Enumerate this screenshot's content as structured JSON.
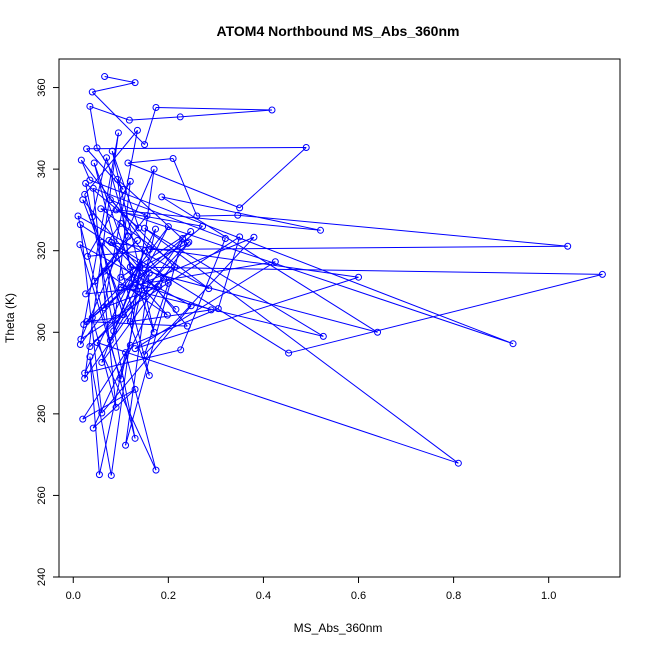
{
  "chart_data": {
    "type": "line",
    "title": "ATOM4 Northbound MS_Abs_360nm",
    "xlabel": "MS_Abs_360nm",
    "ylabel": "Theta (K)",
    "xlim": [
      -0.03,
      1.15
    ],
    "ylim": [
      240,
      367
    ],
    "xticks": [
      "0.0",
      "0.2",
      "0.4",
      "0.6",
      "0.8",
      "1.0"
    ],
    "xtick_values": [
      0,
      0.2,
      0.4,
      0.6,
      0.8,
      1.0
    ],
    "yticks": [
      "240",
      "260",
      "280",
      "300",
      "320",
      "340",
      "360"
    ],
    "ytick_values": [
      240,
      260,
      280,
      300,
      320,
      340,
      360
    ],
    "grid": false,
    "legend": "none",
    "series": [
      {
        "color": "#0000ff",
        "marker": "open-circle",
        "points": [
          [
            0.066,
            362.7
          ],
          [
            0.13,
            361.2
          ],
          [
            0.04,
            358.9
          ],
          [
            0.15,
            346.0
          ],
          [
            0.174,
            355.1
          ],
          [
            0.418,
            354.5
          ],
          [
            0.225,
            352.8
          ],
          [
            0.118,
            352.0
          ],
          [
            0.035,
            355.4
          ],
          [
            0.05,
            345.2
          ],
          [
            0.105,
            335.0
          ],
          [
            0.028,
            345.0
          ],
          [
            0.49,
            345.3
          ],
          [
            0.35,
            330.5
          ],
          [
            0.115,
            341.5
          ],
          [
            0.21,
            342.6
          ],
          [
            0.26,
            328.5
          ],
          [
            0.346,
            328.7
          ],
          [
            1.04,
            321.1
          ],
          [
            0.16,
            320.3
          ],
          [
            0.017,
            342.2
          ],
          [
            0.035,
            337.3
          ],
          [
            0.925,
            297.2
          ],
          [
            0.09,
            330.0
          ],
          [
            0.52,
            325.0
          ],
          [
            0.186,
            333.2
          ],
          [
            0.64,
            300.0
          ],
          [
            0.12,
            316.0
          ],
          [
            1.113,
            314.2
          ],
          [
            0.453,
            294.9
          ],
          [
            0.08,
            322.0
          ],
          [
            0.6,
            313.5
          ],
          [
            0.13,
            296.0
          ],
          [
            0.425,
            317.3
          ],
          [
            0.1,
            311.0
          ],
          [
            0.526,
            299.0
          ],
          [
            0.15,
            325.5
          ],
          [
            0.81,
            267.9
          ],
          [
            0.05,
            297.5
          ],
          [
            0.174,
            266.2
          ],
          [
            0.11,
            295.0
          ],
          [
            0.055,
            265.1
          ],
          [
            0.035,
            294.0
          ],
          [
            0.08,
            264.9
          ],
          [
            0.17,
            340.0
          ],
          [
            0.016,
            298.3
          ],
          [
            0.35,
            323.4
          ],
          [
            0.305,
            305.8
          ],
          [
            0.12,
            296.8
          ],
          [
            0.02,
            278.7
          ],
          [
            0.13,
            286.0
          ],
          [
            0.042,
            276.5
          ],
          [
            0.19,
            313.0
          ],
          [
            0.015,
            326.4
          ],
          [
            0.06,
            280.2
          ],
          [
            0.248,
            306.5
          ],
          [
            0.014,
            321.5
          ],
          [
            0.1,
            288.5
          ],
          [
            0.173,
            325.3
          ],
          [
            0.024,
            290.0
          ],
          [
            0.226,
            295.7
          ],
          [
            0.32,
            323.0
          ],
          [
            0.042,
            335.3
          ],
          [
            0.09,
            281.6
          ],
          [
            0.04,
            303.6
          ],
          [
            0.272,
            326.0
          ],
          [
            0.058,
            330.3
          ],
          [
            0.285,
            310.7
          ],
          [
            0.01,
            328.5
          ],
          [
            0.13,
            274.0
          ],
          [
            0.026,
            336.5
          ],
          [
            0.138,
            325.6
          ],
          [
            0.082,
            344.4
          ],
          [
            0.17,
            300.0
          ],
          [
            0.044,
            341.5
          ],
          [
            0.16,
            289.4
          ],
          [
            0.02,
            332.5
          ],
          [
            0.24,
            301.5
          ],
          [
            0.028,
            302.6
          ],
          [
            0.09,
            303.5
          ],
          [
            0.06,
            322.0
          ],
          [
            0.198,
            304.2
          ],
          [
            0.065,
            315.0
          ],
          [
            0.135,
            322.5
          ],
          [
            0.045,
            312.5
          ],
          [
            0.116,
            323.5
          ],
          [
            0.07,
            342.8
          ],
          [
            0.04,
            328.3
          ],
          [
            0.105,
            304.3
          ],
          [
            0.024,
            333.8
          ],
          [
            0.135,
            349.5
          ],
          [
            0.064,
            306.0
          ],
          [
            0.18,
            311.2
          ],
          [
            0.026,
            309.4
          ],
          [
            0.155,
            328.6
          ],
          [
            0.078,
            332.5
          ],
          [
            0.213,
            316.0
          ],
          [
            0.035,
            296.5
          ],
          [
            0.243,
            322.1
          ],
          [
            0.06,
            292.6
          ],
          [
            0.15,
            320.0
          ],
          [
            0.03,
            318.6
          ],
          [
            0.12,
            337.0
          ],
          [
            0.085,
            300.3
          ],
          [
            0.2,
            325.9
          ],
          [
            0.015,
            297.0
          ],
          [
            0.095,
            348.9
          ],
          [
            0.024,
            288.7
          ],
          [
            0.23,
            323.0
          ],
          [
            0.11,
            272.3
          ],
          [
            0.16,
            314.5
          ],
          [
            0.078,
            298.0
          ],
          [
            0.14,
            316.2
          ],
          [
            0.022,
            301.9
          ],
          [
            0.247,
            324.7
          ],
          [
            0.1,
            313.5
          ],
          [
            0.29,
            305.5
          ],
          [
            0.12,
            302.6
          ],
          [
            0.14,
            315.8
          ],
          [
            0.24,
            321.8
          ],
          [
            0.093,
            337.5
          ],
          [
            0.125,
            311.0
          ],
          [
            0.38,
            323.3
          ],
          [
            0.15,
            294.5
          ],
          [
            0.2,
            312.0
          ],
          [
            0.1,
            326.7
          ],
          [
            0.075,
            322.5
          ],
          [
            0.216,
            305.6
          ]
        ]
      }
    ]
  }
}
